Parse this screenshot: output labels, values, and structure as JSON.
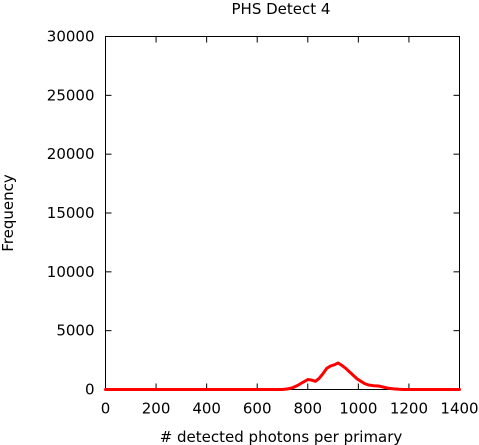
{
  "chart_data": {
    "type": "line",
    "title": "PHS Detect 4",
    "xlabel": "# detected photons per primary",
    "ylabel": "Frequency",
    "xlim": [
      0,
      1400
    ],
    "ylim": [
      0,
      30000
    ],
    "x_ticks": [
      0,
      200,
      400,
      600,
      800,
      1000,
      1200,
      1400
    ],
    "y_ticks": [
      0,
      5000,
      10000,
      15000,
      20000,
      25000,
      30000
    ],
    "grid": false,
    "line_color": "#ff0000",
    "series": [
      {
        "x": [
          0,
          100,
          200,
          300,
          400,
          500,
          600,
          700,
          720,
          740,
          760,
          780,
          800,
          815,
          830,
          845,
          860,
          875,
          890,
          905,
          920,
          935,
          950,
          965,
          980,
          995,
          1010,
          1025,
          1040,
          1060,
          1080,
          1100,
          1120,
          1140,
          1160,
          1180,
          1200,
          1250,
          1300,
          1350,
          1400
        ],
        "y": [
          0,
          0,
          0,
          0,
          0,
          0,
          0,
          0,
          50,
          150,
          350,
          600,
          850,
          800,
          700,
          950,
          1350,
          1800,
          2000,
          2100,
          2250,
          2050,
          1800,
          1500,
          1200,
          900,
          700,
          500,
          380,
          320,
          300,
          200,
          100,
          50,
          20,
          0,
          0,
          0,
          0,
          0,
          0
        ]
      }
    ]
  }
}
